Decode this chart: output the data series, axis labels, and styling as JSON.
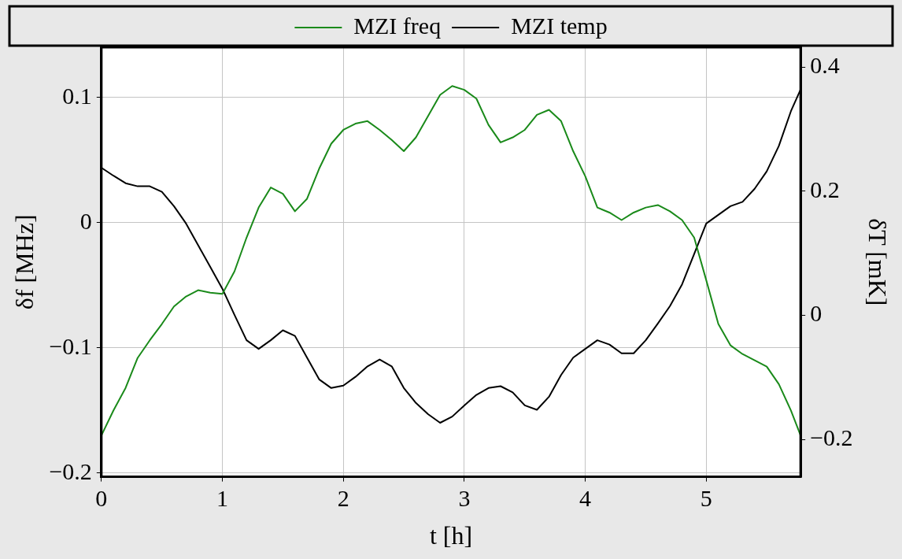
{
  "chart_data": {
    "type": "line",
    "xlabel": "t [h]",
    "ylabel": "δf [MHz]",
    "y2label": "δT [mK]",
    "x": [
      0,
      0.1,
      0.2,
      0.3,
      0.4,
      0.5,
      0.6,
      0.7,
      0.8,
      0.9,
      1.0,
      1.1,
      1.2,
      1.3,
      1.4,
      1.5,
      1.6,
      1.7,
      1.8,
      1.9,
      2.0,
      2.1,
      2.2,
      2.3,
      2.4,
      2.5,
      2.6,
      2.7,
      2.8,
      2.9,
      3.0,
      3.1,
      3.2,
      3.3,
      3.4,
      3.5,
      3.6,
      3.7,
      3.8,
      3.9,
      4.0,
      4.1,
      4.2,
      4.3,
      4.4,
      4.5,
      4.6,
      4.7,
      4.8,
      4.9,
      5.0,
      5.1,
      5.2,
      5.3,
      5.4,
      5.5,
      5.6,
      5.7,
      5.78
    ],
    "series": [
      {
        "name": "MZI freq",
        "color": "#1a8a1a",
        "values": [
          -0.17,
          -0.15,
          -0.132,
          -0.108,
          -0.094,
          -0.081,
          -0.067,
          -0.059,
          -0.054,
          -0.056,
          -0.057,
          -0.039,
          -0.012,
          0.012,
          0.028,
          0.023,
          0.009,
          0.019,
          0.043,
          0.063,
          0.074,
          0.079,
          0.081,
          0.074,
          0.066,
          0.057,
          0.068,
          0.085,
          0.102,
          0.109,
          0.106,
          0.099,
          0.078,
          0.064,
          0.068,
          0.074,
          0.086,
          0.09,
          0.081,
          0.057,
          0.037,
          0.012,
          0.008,
          0.002,
          0.008,
          0.012,
          0.014,
          0.009,
          0.002,
          -0.012,
          -0.046,
          -0.081,
          -0.098,
          -0.105,
          -0.11,
          -0.115,
          -0.129,
          -0.15,
          -0.17
        ]
      },
      {
        "name": "MZI temp",
        "color": "#000000",
        "axis": "y2",
        "values": [
          0.238,
          0.225,
          0.213,
          0.208,
          0.208,
          0.199,
          0.176,
          0.148,
          0.113,
          0.078,
          0.043,
          0.001,
          -0.04,
          -0.054,
          -0.04,
          -0.024,
          -0.033,
          -0.068,
          -0.103,
          -0.117,
          -0.113,
          -0.099,
          -0.082,
          -0.071,
          -0.082,
          -0.117,
          -0.141,
          -0.159,
          -0.173,
          -0.163,
          -0.145,
          -0.128,
          -0.117,
          -0.114,
          -0.124,
          -0.145,
          -0.152,
          -0.131,
          -0.096,
          -0.068,
          -0.054,
          -0.04,
          -0.047,
          -0.061,
          -0.061,
          -0.04,
          -0.013,
          0.015,
          0.05,
          0.099,
          0.148,
          0.162,
          0.176,
          0.183,
          0.204,
          0.232,
          0.273,
          0.329,
          0.364
        ]
      }
    ],
    "xlim": [
      0,
      5.78
    ],
    "xticks": [
      0,
      1,
      2,
      3,
      4,
      5
    ],
    "ylim": [
      -0.203,
      0.14
    ],
    "yticks": [
      {
        "value": -0.2,
        "label": "−0.2"
      },
      {
        "value": -0.1,
        "label": "−0.1"
      },
      0,
      0.1
    ],
    "y2lim": [
      -0.26,
      0.432
    ],
    "y2ticks": [
      {
        "value": -0.2,
        "label": "−0.2"
      },
      0,
      0.2,
      0.4
    ],
    "grid": true,
    "legend": "top",
    "marker": "none",
    "line_style": "solid"
  }
}
